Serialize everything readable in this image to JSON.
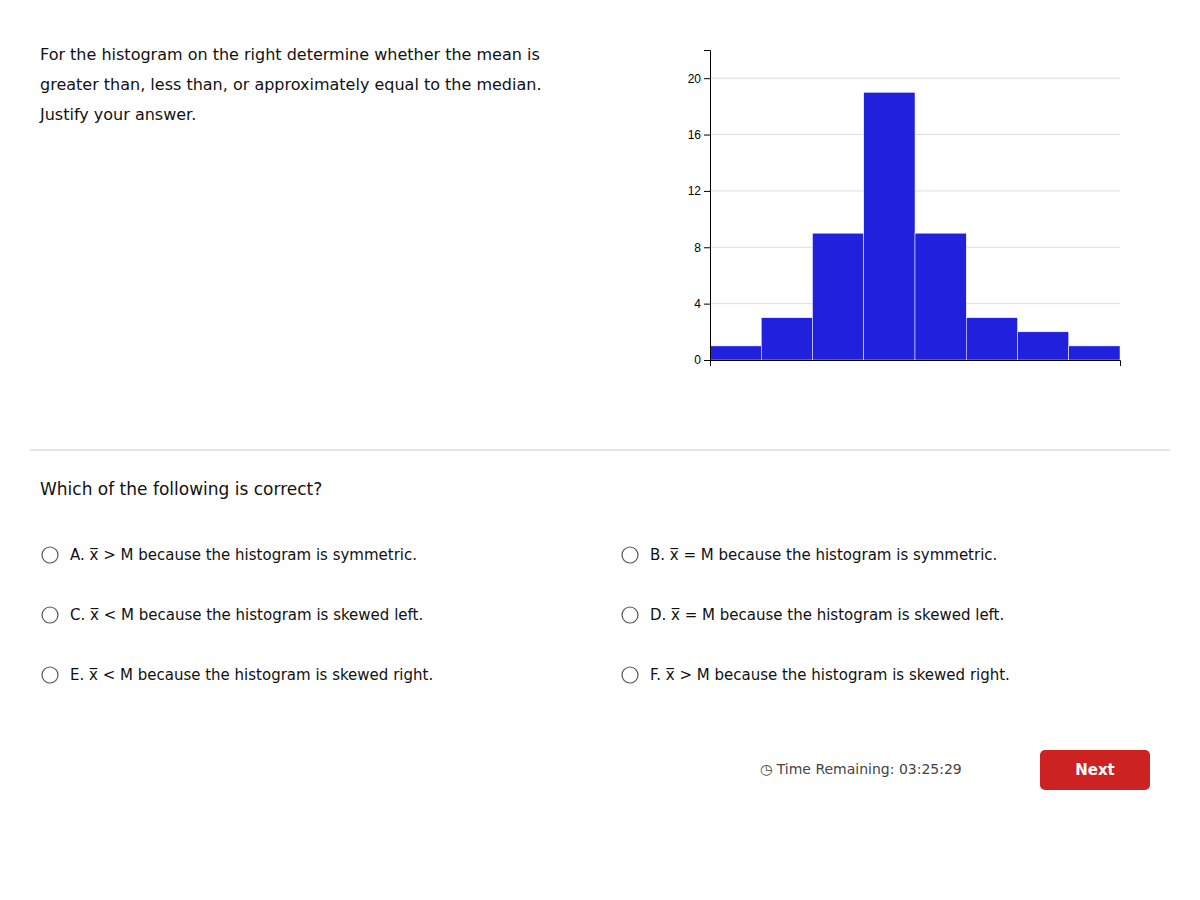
{
  "chart_data": {
    "type": "bar",
    "categories": [
      null,
      null,
      null,
      null,
      null,
      null,
      null,
      null
    ],
    "values": [
      1,
      3,
      9,
      19,
      9,
      3,
      2,
      1
    ],
    "color": "#2020dd",
    "ylim": [
      0,
      22
    ],
    "yticks": [
      0,
      4,
      8,
      12,
      16,
      20
    ],
    "grid": true,
    "tick_labels": "y",
    "annotations": [
      "For the histogram on the right determine whether the mean is",
      "greater than, less than, or approximately equal to the median.",
      "Justify your answer.",
      "Which of the following is correct?",
      "A. x̅ > M because the histogram is symmetric.",
      "B. x̅ = M because the histogram is symmetric.",
      "C. x̅ < M because the histogram is skewed left.",
      "D. x̅ = M because the histogram is skewed left.",
      "E. x̅ < M because the histogram is skewed right.",
      "F. x̅ > M because the histogram is skewed right.",
      "◷ Time Remaining: 03:25:29",
      "Next"
    ]
  }
}
